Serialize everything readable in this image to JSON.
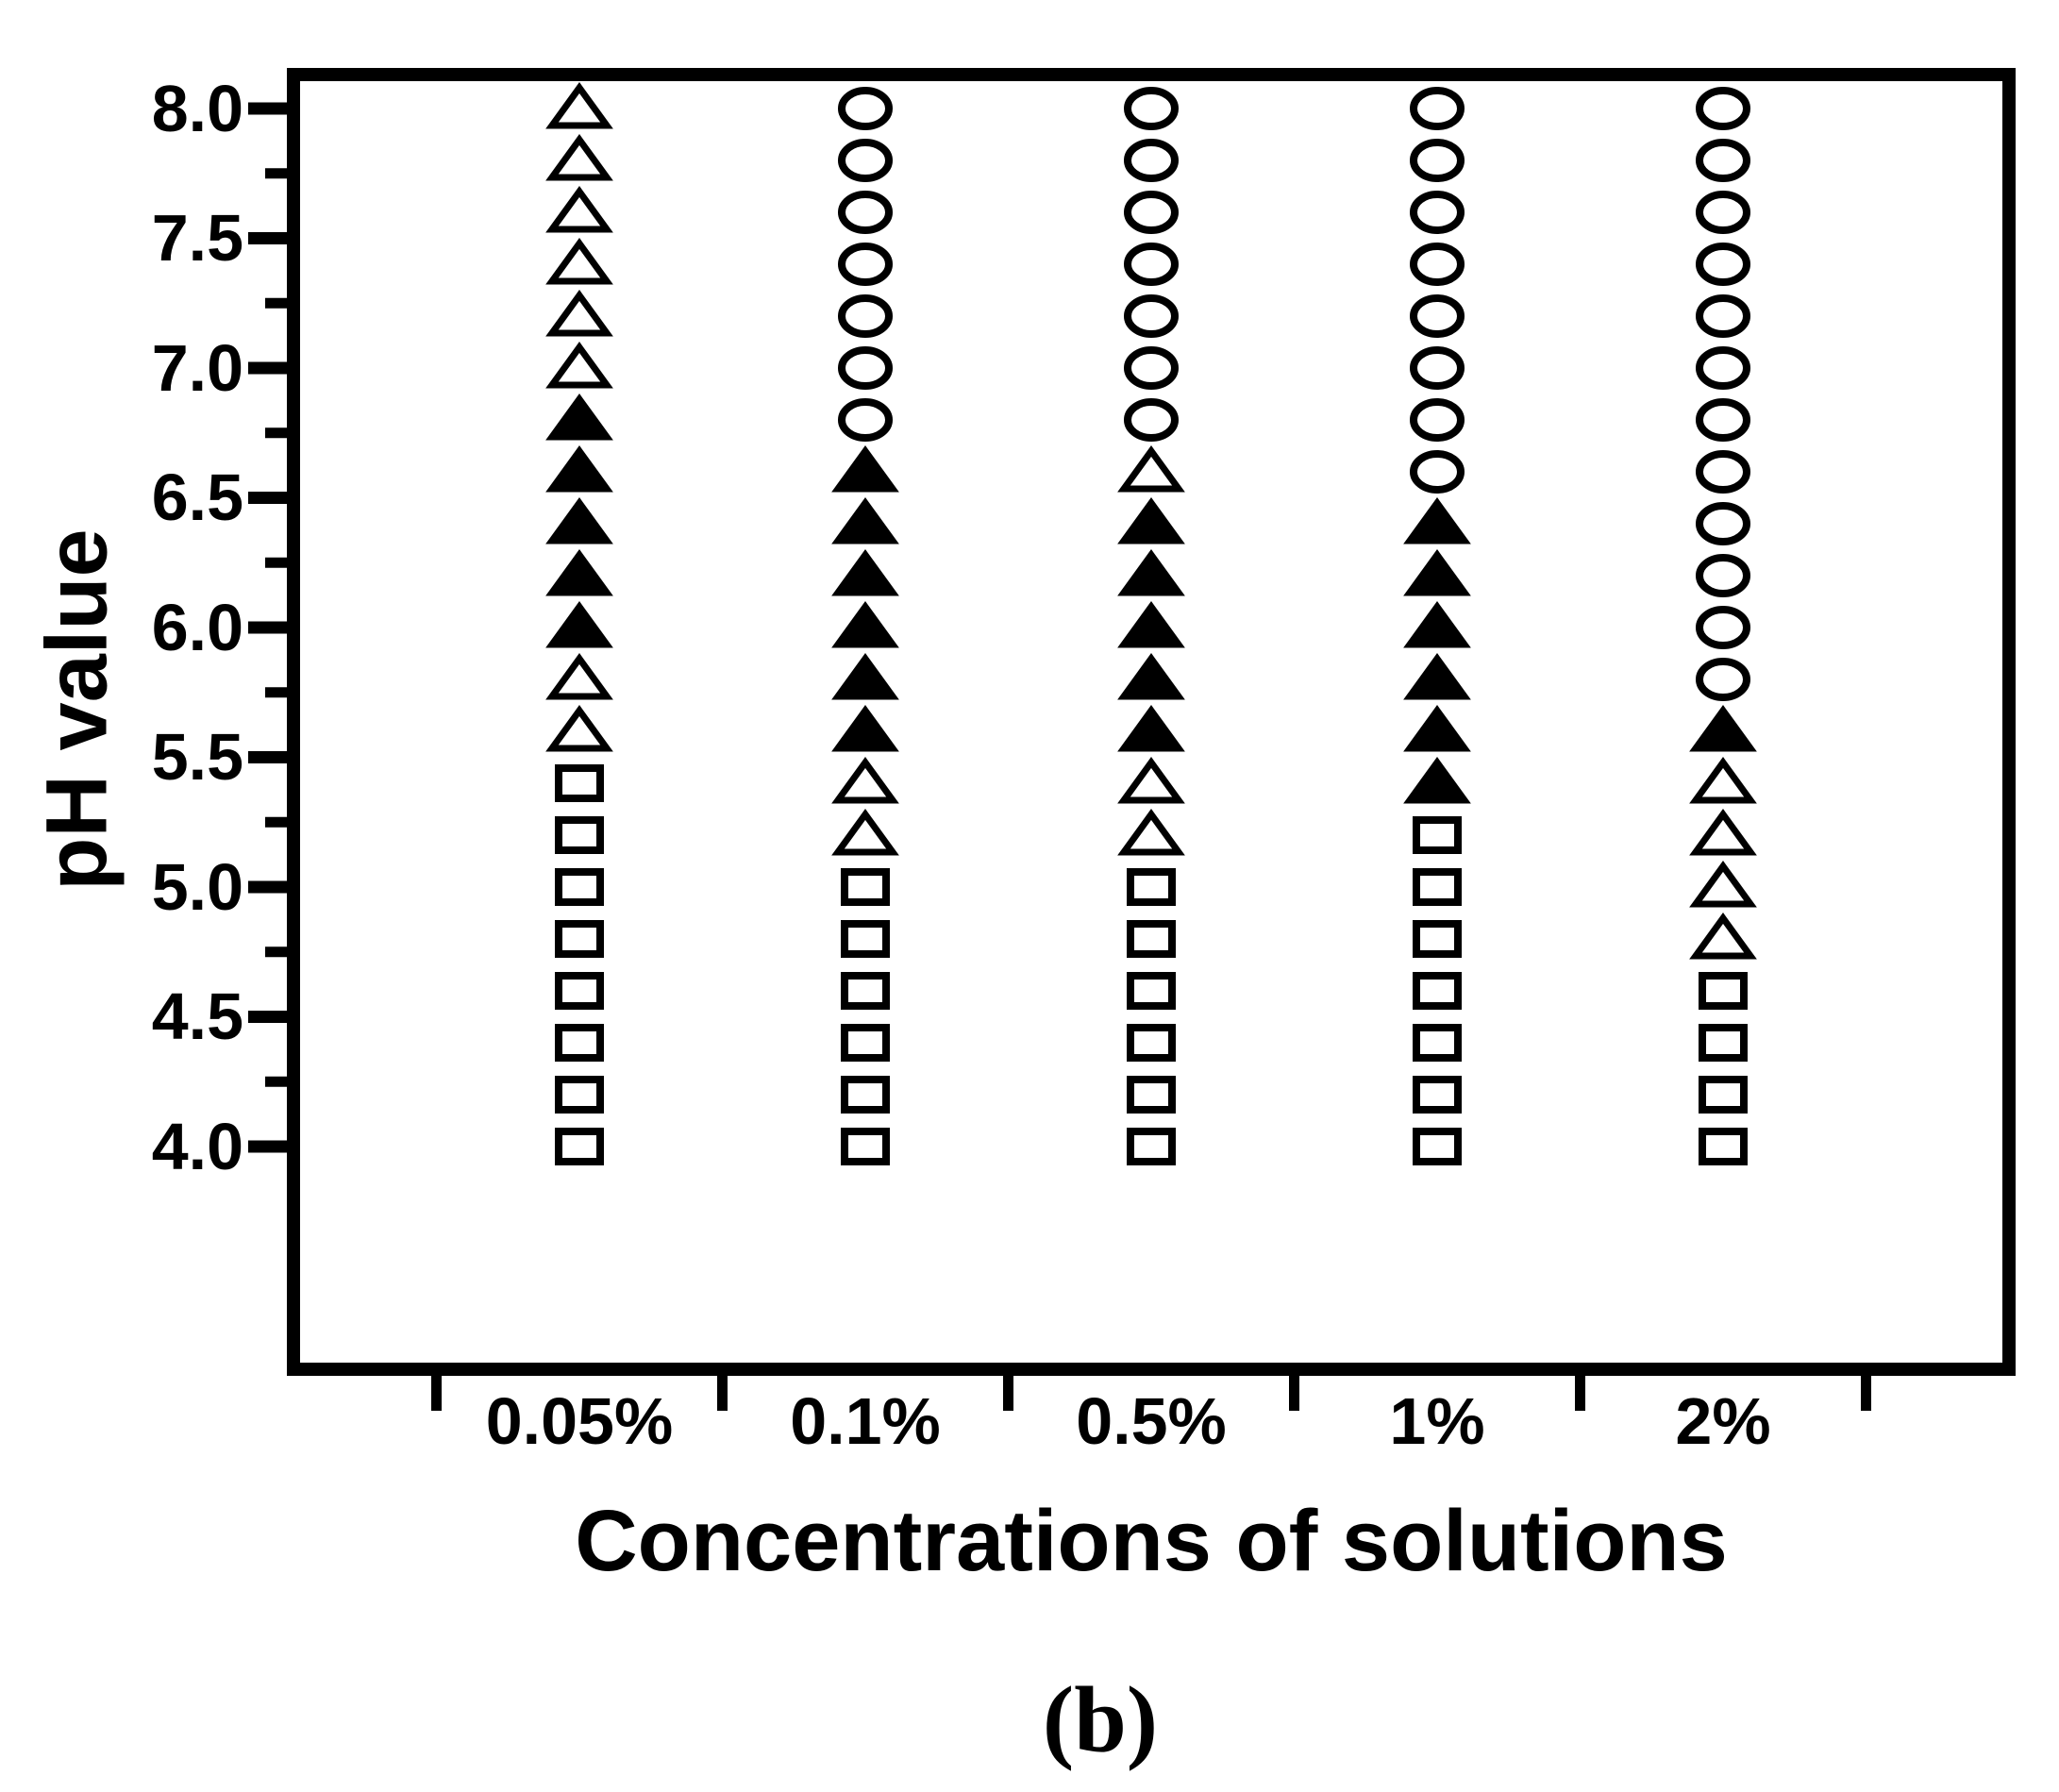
{
  "figure": {
    "caption": "(b)",
    "background_color": "#ffffff",
    "foreground_color": "#000000"
  },
  "chart_data": {
    "type": "scatter",
    "title": "",
    "xlabel": "Concentrations of solutions",
    "ylabel": "pH value",
    "categories": [
      "0.05%",
      "0.1%",
      "0.5%",
      "1%",
      "2%"
    ],
    "y_tick_labels": [
      "8.0",
      "7.5",
      "7.0",
      "6.5",
      "6.0",
      "5.5",
      "5.0",
      "4.5",
      "4.0"
    ],
    "y_major_ticks": [
      8.0,
      7.5,
      7.0,
      6.5,
      6.0,
      5.5,
      5.0,
      4.5,
      4.0
    ],
    "y_minor_ticks": [
      7.75,
      7.25,
      6.75,
      6.25,
      5.75,
      5.25,
      4.75,
      4.25
    ],
    "ylim": [
      3.1,
      8.16
    ],
    "marker_step_ph": 0.2,
    "grid": false,
    "legend": "none",
    "marker_types": [
      "open-triangle",
      "filled-triangle",
      "open-circle",
      "open-square"
    ],
    "series": [
      {
        "category": "0.05%",
        "points": [
          {
            "ph": 8.0,
            "marker": "open-triangle"
          },
          {
            "ph": 7.8,
            "marker": "open-triangle"
          },
          {
            "ph": 7.6,
            "marker": "open-triangle"
          },
          {
            "ph": 7.4,
            "marker": "open-triangle"
          },
          {
            "ph": 7.2,
            "marker": "open-triangle"
          },
          {
            "ph": 7.0,
            "marker": "open-triangle"
          },
          {
            "ph": 6.8,
            "marker": "filled-triangle"
          },
          {
            "ph": 6.6,
            "marker": "filled-triangle"
          },
          {
            "ph": 6.4,
            "marker": "filled-triangle"
          },
          {
            "ph": 6.2,
            "marker": "filled-triangle"
          },
          {
            "ph": 6.0,
            "marker": "filled-triangle"
          },
          {
            "ph": 5.8,
            "marker": "open-triangle"
          },
          {
            "ph": 5.6,
            "marker": "open-triangle"
          },
          {
            "ph": 5.4,
            "marker": "open-square"
          },
          {
            "ph": 5.2,
            "marker": "open-square"
          },
          {
            "ph": 5.0,
            "marker": "open-square"
          },
          {
            "ph": 4.8,
            "marker": "open-square"
          },
          {
            "ph": 4.6,
            "marker": "open-square"
          },
          {
            "ph": 4.4,
            "marker": "open-square"
          },
          {
            "ph": 4.2,
            "marker": "open-square"
          },
          {
            "ph": 4.0,
            "marker": "open-square"
          }
        ]
      },
      {
        "category": "0.1%",
        "points": [
          {
            "ph": 8.0,
            "marker": "open-circle"
          },
          {
            "ph": 7.8,
            "marker": "open-circle"
          },
          {
            "ph": 7.6,
            "marker": "open-circle"
          },
          {
            "ph": 7.4,
            "marker": "open-circle"
          },
          {
            "ph": 7.2,
            "marker": "open-circle"
          },
          {
            "ph": 7.0,
            "marker": "open-circle"
          },
          {
            "ph": 6.8,
            "marker": "open-circle"
          },
          {
            "ph": 6.6,
            "marker": "filled-triangle"
          },
          {
            "ph": 6.4,
            "marker": "filled-triangle"
          },
          {
            "ph": 6.2,
            "marker": "filled-triangle"
          },
          {
            "ph": 6.0,
            "marker": "filled-triangle"
          },
          {
            "ph": 5.8,
            "marker": "filled-triangle"
          },
          {
            "ph": 5.6,
            "marker": "filled-triangle"
          },
          {
            "ph": 5.4,
            "marker": "open-triangle"
          },
          {
            "ph": 5.2,
            "marker": "open-triangle"
          },
          {
            "ph": 5.0,
            "marker": "open-square"
          },
          {
            "ph": 4.8,
            "marker": "open-square"
          },
          {
            "ph": 4.6,
            "marker": "open-square"
          },
          {
            "ph": 4.4,
            "marker": "open-square"
          },
          {
            "ph": 4.2,
            "marker": "open-square"
          },
          {
            "ph": 4.0,
            "marker": "open-square"
          }
        ]
      },
      {
        "category": "0.5%",
        "points": [
          {
            "ph": 8.0,
            "marker": "open-circle"
          },
          {
            "ph": 7.8,
            "marker": "open-circle"
          },
          {
            "ph": 7.6,
            "marker": "open-circle"
          },
          {
            "ph": 7.4,
            "marker": "open-circle"
          },
          {
            "ph": 7.2,
            "marker": "open-circle"
          },
          {
            "ph": 7.0,
            "marker": "open-circle"
          },
          {
            "ph": 6.8,
            "marker": "open-circle"
          },
          {
            "ph": 6.6,
            "marker": "open-triangle"
          },
          {
            "ph": 6.4,
            "marker": "filled-triangle"
          },
          {
            "ph": 6.2,
            "marker": "filled-triangle"
          },
          {
            "ph": 6.0,
            "marker": "filled-triangle"
          },
          {
            "ph": 5.8,
            "marker": "filled-triangle"
          },
          {
            "ph": 5.6,
            "marker": "filled-triangle"
          },
          {
            "ph": 5.4,
            "marker": "open-triangle"
          },
          {
            "ph": 5.2,
            "marker": "open-triangle"
          },
          {
            "ph": 5.0,
            "marker": "open-square"
          },
          {
            "ph": 4.8,
            "marker": "open-square"
          },
          {
            "ph": 4.6,
            "marker": "open-square"
          },
          {
            "ph": 4.4,
            "marker": "open-square"
          },
          {
            "ph": 4.2,
            "marker": "open-square"
          },
          {
            "ph": 4.0,
            "marker": "open-square"
          }
        ]
      },
      {
        "category": "1%",
        "points": [
          {
            "ph": 8.0,
            "marker": "open-circle"
          },
          {
            "ph": 7.8,
            "marker": "open-circle"
          },
          {
            "ph": 7.6,
            "marker": "open-circle"
          },
          {
            "ph": 7.4,
            "marker": "open-circle"
          },
          {
            "ph": 7.2,
            "marker": "open-circle"
          },
          {
            "ph": 7.0,
            "marker": "open-circle"
          },
          {
            "ph": 6.8,
            "marker": "open-circle"
          },
          {
            "ph": 6.6,
            "marker": "open-circle"
          },
          {
            "ph": 6.4,
            "marker": "filled-triangle"
          },
          {
            "ph": 6.2,
            "marker": "filled-triangle"
          },
          {
            "ph": 6.0,
            "marker": "filled-triangle"
          },
          {
            "ph": 5.8,
            "marker": "filled-triangle"
          },
          {
            "ph": 5.6,
            "marker": "filled-triangle"
          },
          {
            "ph": 5.4,
            "marker": "filled-triangle"
          },
          {
            "ph": 5.2,
            "marker": "open-square"
          },
          {
            "ph": 5.0,
            "marker": "open-square"
          },
          {
            "ph": 4.8,
            "marker": "open-square"
          },
          {
            "ph": 4.6,
            "marker": "open-square"
          },
          {
            "ph": 4.4,
            "marker": "open-square"
          },
          {
            "ph": 4.2,
            "marker": "open-square"
          },
          {
            "ph": 4.0,
            "marker": "open-square"
          }
        ]
      },
      {
        "category": "2%",
        "points": [
          {
            "ph": 8.0,
            "marker": "open-circle"
          },
          {
            "ph": 7.8,
            "marker": "open-circle"
          },
          {
            "ph": 7.6,
            "marker": "open-circle"
          },
          {
            "ph": 7.4,
            "marker": "open-circle"
          },
          {
            "ph": 7.2,
            "marker": "open-circle"
          },
          {
            "ph": 7.0,
            "marker": "open-circle"
          },
          {
            "ph": 6.8,
            "marker": "open-circle"
          },
          {
            "ph": 6.6,
            "marker": "open-circle"
          },
          {
            "ph": 6.4,
            "marker": "open-circle"
          },
          {
            "ph": 6.2,
            "marker": "open-circle"
          },
          {
            "ph": 6.0,
            "marker": "open-circle"
          },
          {
            "ph": 5.8,
            "marker": "open-circle"
          },
          {
            "ph": 5.6,
            "marker": "filled-triangle"
          },
          {
            "ph": 5.4,
            "marker": "open-triangle"
          },
          {
            "ph": 5.2,
            "marker": "open-triangle"
          },
          {
            "ph": 5.0,
            "marker": "open-triangle"
          },
          {
            "ph": 4.8,
            "marker": "open-triangle"
          },
          {
            "ph": 4.6,
            "marker": "open-square"
          },
          {
            "ph": 4.4,
            "marker": "open-square"
          },
          {
            "ph": 4.2,
            "marker": "open-square"
          },
          {
            "ph": 4.0,
            "marker": "open-square"
          }
        ]
      }
    ]
  }
}
